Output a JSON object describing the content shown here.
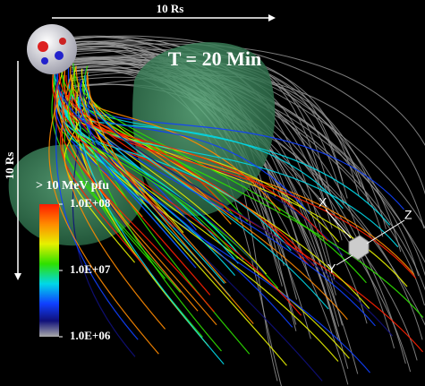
{
  "scale_top": "10 Rs",
  "scale_left": "10 Rs",
  "time_label": "T = 20 Min",
  "colorbar": {
    "title": "> 10 MeV pfu",
    "ticks": [
      {
        "value": 100000000,
        "label": "1.0E+08"
      },
      {
        "value": 10000000,
        "label": "1.0E+07"
      },
      {
        "value": 1000000,
        "label": "1.0E+06"
      }
    ]
  },
  "axes": {
    "x": "X",
    "y": "Y",
    "z": "Z"
  }
}
